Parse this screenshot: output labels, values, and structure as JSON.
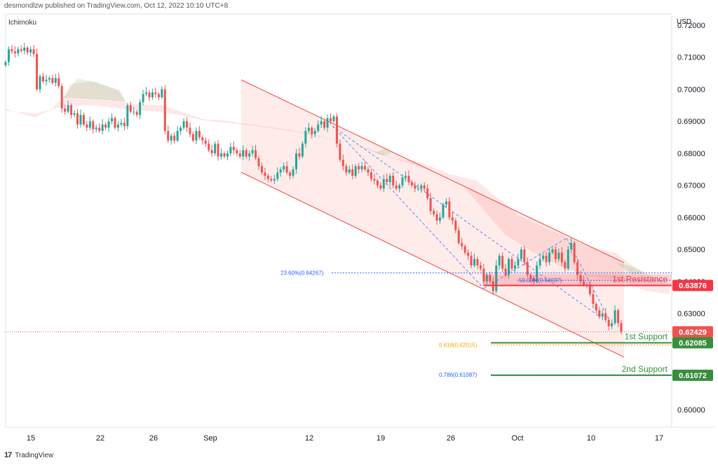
{
  "header": {
    "publisher": "desmondlzw published on TradingView.com, Oct 12, 2022 10:10 UTC+8",
    "indicator": "Ichimoku"
  },
  "footer": {
    "brand": "TradingView"
  },
  "colors": {
    "bull": "#26a69a",
    "bear": "#ef5350",
    "resistance": "#f23645",
    "support": "#388e3c",
    "fib": "#2962ff",
    "fib618": "#f7a600",
    "channel": "#f44336"
  },
  "chart_data": {
    "type": "candlestick",
    "currency_label": "USD",
    "y_ticks": [
      "0.72000",
      "0.71000",
      "0.70000",
      "0.69000",
      "0.68000",
      "0.67000",
      "0.66000",
      "0.65000",
      "0.64000",
      "0.63000",
      "0.62000",
      "0.61000",
      "0.60000"
    ],
    "ylim": [
      0.5945,
      0.7235
    ],
    "x_ticks": [
      "15",
      "22",
      "26",
      "Sep",
      "12",
      "19",
      "26",
      "Oct",
      "10",
      "17"
    ],
    "price_labels": [
      {
        "value": 0.63876,
        "label": "0.63876",
        "role": "resistance"
      },
      {
        "value": 0.62429,
        "label": "0.62429",
        "role": "last"
      },
      {
        "value": 0.62085,
        "label": "0.62085",
        "role": "support"
      },
      {
        "value": 0.61072,
        "label": "0.61072",
        "role": "support"
      }
    ],
    "annotations": [
      {
        "text": "1st Resistance",
        "value": 0.63876
      },
      {
        "text": "1st Support",
        "value": 0.62085
      },
      {
        "text": "2nd Support",
        "value": 0.61072
      }
    ],
    "fib_levels": [
      {
        "text": "23.60%(0.64267)",
        "value": 0.64267
      },
      {
        "text": "50.00%(0.64037)",
        "value": 0.64037
      },
      {
        "text": "0.618(0.62015)",
        "value": 0.62015
      },
      {
        "text": "0.786(0.61087)",
        "value": 0.61087
      }
    ],
    "closes": [
      0.7085,
      0.7125,
      0.7118,
      0.7112,
      0.7125,
      0.712,
      0.713,
      0.7115,
      0.7125,
      0.711,
      0.7,
      0.704,
      0.7025,
      0.703,
      0.7035,
      0.702,
      0.7035,
      0.701,
      0.694,
      0.693,
      0.695,
      0.692,
      0.6925,
      0.689,
      0.692,
      0.689,
      0.688,
      0.69,
      0.6875,
      0.688,
      0.687,
      0.689,
      0.688,
      0.69,
      0.691,
      0.688,
      0.689,
      0.6895,
      0.6885,
      0.695,
      0.693,
      0.693,
      0.692,
      0.696,
      0.6985,
      0.699,
      0.6975,
      0.699,
      0.6985,
      0.6975,
      0.7,
      0.687,
      0.684,
      0.6855,
      0.684,
      0.687,
      0.688,
      0.69,
      0.688,
      0.686,
      0.684,
      0.687,
      0.685,
      0.684,
      0.683,
      0.681,
      0.68,
      0.683,
      0.679,
      0.68,
      0.679,
      0.68,
      0.682,
      0.681,
      0.68,
      0.679,
      0.681,
      0.679,
      0.68,
      0.681,
      0.6785,
      0.676,
      0.674,
      0.673,
      0.672,
      0.6715,
      0.672,
      0.674,
      0.675,
      0.676,
      0.674,
      0.673,
      0.675,
      0.68,
      0.679,
      0.683,
      0.687,
      0.688,
      0.686,
      0.687,
      0.689,
      0.69,
      0.688,
      0.691,
      0.69,
      0.6915,
      0.683,
      0.678,
      0.676,
      0.674,
      0.675,
      0.673,
      0.676,
      0.675,
      0.676,
      0.675,
      0.674,
      0.672,
      0.6715,
      0.67,
      0.669,
      0.672,
      0.671,
      0.673,
      0.67,
      0.669,
      0.67,
      0.6725,
      0.673,
      0.671,
      0.67,
      0.669,
      0.669,
      0.67,
      0.669,
      0.666,
      0.662,
      0.661,
      0.659,
      0.66,
      0.664,
      0.665,
      0.66,
      0.659,
      0.656,
      0.652,
      0.651,
      0.649,
      0.648,
      0.645,
      0.647,
      0.645,
      0.644,
      0.64,
      0.642,
      0.64,
      0.637,
      0.645,
      0.648,
      0.644,
      0.642,
      0.647,
      0.644,
      0.645,
      0.647,
      0.65,
      0.646,
      0.642,
      0.641,
      0.64,
      0.645,
      0.647,
      0.648,
      0.646,
      0.649,
      0.65,
      0.647,
      0.649,
      0.646,
      0.644,
      0.65,
      0.652,
      0.646,
      0.642,
      0.64,
      0.639,
      0.639,
      0.636,
      0.633,
      0.631,
      0.629,
      0.63,
      0.628,
      0.626,
      0.627,
      0.631,
      0.627,
      0.6243
    ]
  }
}
